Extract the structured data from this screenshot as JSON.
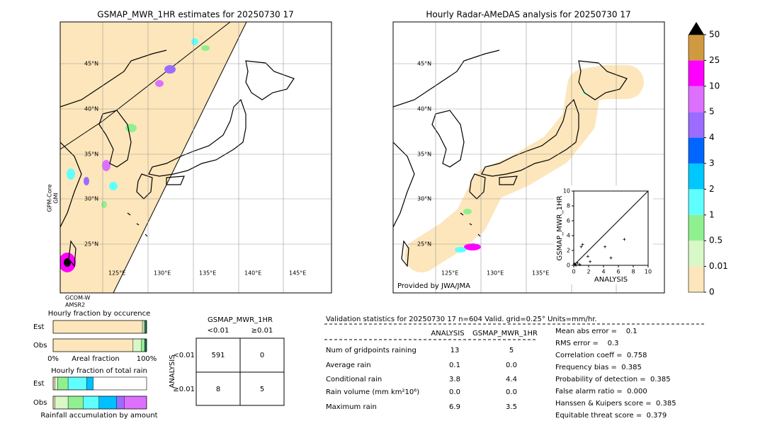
{
  "chart_data": [
    {
      "type": "scatter",
      "xlabel": "ANALYSIS",
      "ylabel": "GSMAP_MWR_1HR",
      "xlim": [
        0,
        10
      ],
      "ylim": [
        0,
        10
      ],
      "xticks": [
        0,
        2,
        4,
        6,
        8,
        10
      ],
      "yticks": [
        0,
        2,
        4,
        6,
        8,
        10
      ],
      "x": [
        0.1,
        0.2,
        0.3,
        0.5,
        0.8,
        1.0,
        1.2,
        1.9,
        2.2,
        4.2,
        5.0,
        6.8
      ],
      "y": [
        0.2,
        0.1,
        0.0,
        0.3,
        0.1,
        2.5,
        2.8,
        1.2,
        0.5,
        2.5,
        1.0,
        3.5
      ],
      "color": "#000000"
    },
    {
      "type": "stacked-bar",
      "title": "Hourly fraction by occurence",
      "xlabel": "Areal fraction",
      "categories": [
        "Est",
        "Obs"
      ],
      "xlim": [
        0,
        1
      ],
      "xticks": [
        {
          "value": 0,
          "label": "0%"
        },
        {
          "value": 1,
          "label": "100%"
        }
      ],
      "series": [
        {
          "color": "#fde6bb",
          "values": [
            0.955,
            0.855
          ]
        },
        {
          "color": "#d8f8c8",
          "values": [
            0.02,
            0.09
          ]
        },
        {
          "color": "#90f090",
          "values": [
            0.01,
            0.035
          ]
        },
        {
          "color": "#1a6e50",
          "values": [
            0.015,
            0.02
          ]
        }
      ]
    },
    {
      "type": "stacked-bar",
      "title": "Hourly fraction of total rain",
      "xlabel": "Rainfall accumulation by amount",
      "categories": [
        "Est",
        "Obs"
      ],
      "xlim": [
        0,
        1
      ],
      "series": [
        {
          "color": "#fde6bb",
          "values": [
            0.02,
            0.02
          ]
        },
        {
          "color": "#d8f8c8",
          "values": [
            0.03,
            0.14
          ]
        },
        {
          "color": "#90f090",
          "values": [
            0.11,
            0.16
          ]
        },
        {
          "color": "#60ffff",
          "values": [
            0.2,
            0.17
          ]
        },
        {
          "color": "#00c0ff",
          "values": [
            0.07,
            0.19
          ]
        },
        {
          "color": "#9b6cff",
          "values": [
            0,
            0.08
          ]
        },
        {
          "color": "#dd70ff",
          "values": [
            0,
            0.24
          ]
        }
      ]
    }
  ],
  "maps": [
    {
      "title": "GSMAP_MWR_1HR estimates for 20250730 17",
      "sensor_left": [
        "GPM-Core",
        "GMI"
      ],
      "sensor_bottom": [
        "GCOM-W",
        "AMSR2"
      ],
      "lat_labels": [
        "45°N",
        "40°N",
        "35°N",
        "30°N",
        "25°N"
      ],
      "lon_labels": [
        "125°E",
        "130°E",
        "135°E",
        "140°E",
        "145°E"
      ]
    },
    {
      "title": "Hourly Radar-AMeDAS analysis for 20250730 17",
      "credit": "Provided by JWA/JMA",
      "lat_labels": [
        "45°N",
        "40°N",
        "35°N",
        "30°N",
        "25°N"
      ],
      "lon_labels": [
        "125°E",
        "130°E",
        "135°E"
      ]
    }
  ],
  "colorbar": {
    "bounds": [
      0,
      0.01,
      0.5,
      1,
      2,
      3,
      4,
      5,
      10,
      25,
      50
    ],
    "colors": [
      "#fde6bb",
      "#d8f8c8",
      "#90f090",
      "#60ffff",
      "#00c8ff",
      "#0066ff",
      "#9b6cff",
      "#dd70ff",
      "#ff00ff",
      "#d09a40"
    ],
    "extend_color": "#000000"
  },
  "contingency": {
    "title": "GSMAP_MWR_1HR",
    "col_labels": [
      "<0.01",
      "≥0.01"
    ],
    "row_title": "ANALYSIS",
    "row_labels": [
      "<0.01",
      "≥0.01"
    ],
    "cells": [
      [
        "591",
        "0"
      ],
      [
        "8",
        "5"
      ]
    ]
  },
  "validation": {
    "header": "Validation statistics for 20250730 17  n=604 Valid. grid=0.25° Units=mm/hr.",
    "columns": [
      "ANALYSIS",
      "GSMAP_MWR_1HR"
    ],
    "rows": [
      [
        "Num of gridpoints raining",
        "13",
        "5"
      ],
      [
        "Average rain",
        "0.1",
        "0.0"
      ],
      [
        "Conditional rain",
        "3.8",
        "4.4"
      ],
      [
        "Rain volume (mm km²10⁶)",
        "0.0",
        "0.0"
      ],
      [
        "Maximum rain",
        "6.9",
        "3.5"
      ]
    ],
    "scores": [
      "Mean abs error =    0.1",
      "RMS error =    0.3",
      "Correlation coeff =  0.758",
      "Frequency bias =  0.385",
      "Probability of detection =  0.385",
      "False alarm ratio =  0.000",
      "Hanssen & Kuipers score =  0.385",
      "Equitable threat score =  0.379"
    ]
  }
}
